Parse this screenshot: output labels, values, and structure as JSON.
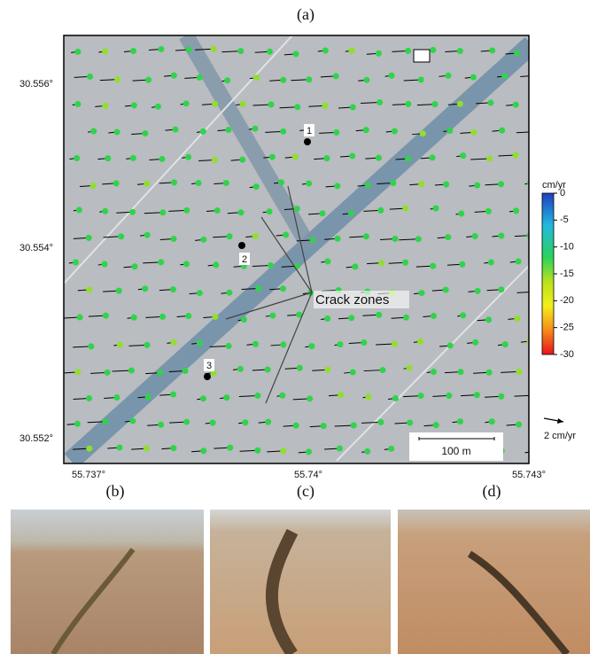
{
  "figure": {
    "panel_labels": [
      "(a)",
      "(b)",
      "(c)",
      "(d)"
    ],
    "map": {
      "lat_ticks": [
        "30.556°",
        "30.554°",
        "30.552°"
      ],
      "lon_ticks": [
        "55.737°",
        "55.74°",
        "55.743°"
      ],
      "point_labels": [
        "1",
        "2",
        "3"
      ],
      "annotation": "Crack zones",
      "scale_bar": "100 m",
      "vector_scale": "2 cm/yr"
    },
    "colorbar": {
      "unit": "cm/yr",
      "ticks": [
        0,
        -5,
        -10,
        -15,
        -20,
        -25,
        -30
      ]
    }
  }
}
